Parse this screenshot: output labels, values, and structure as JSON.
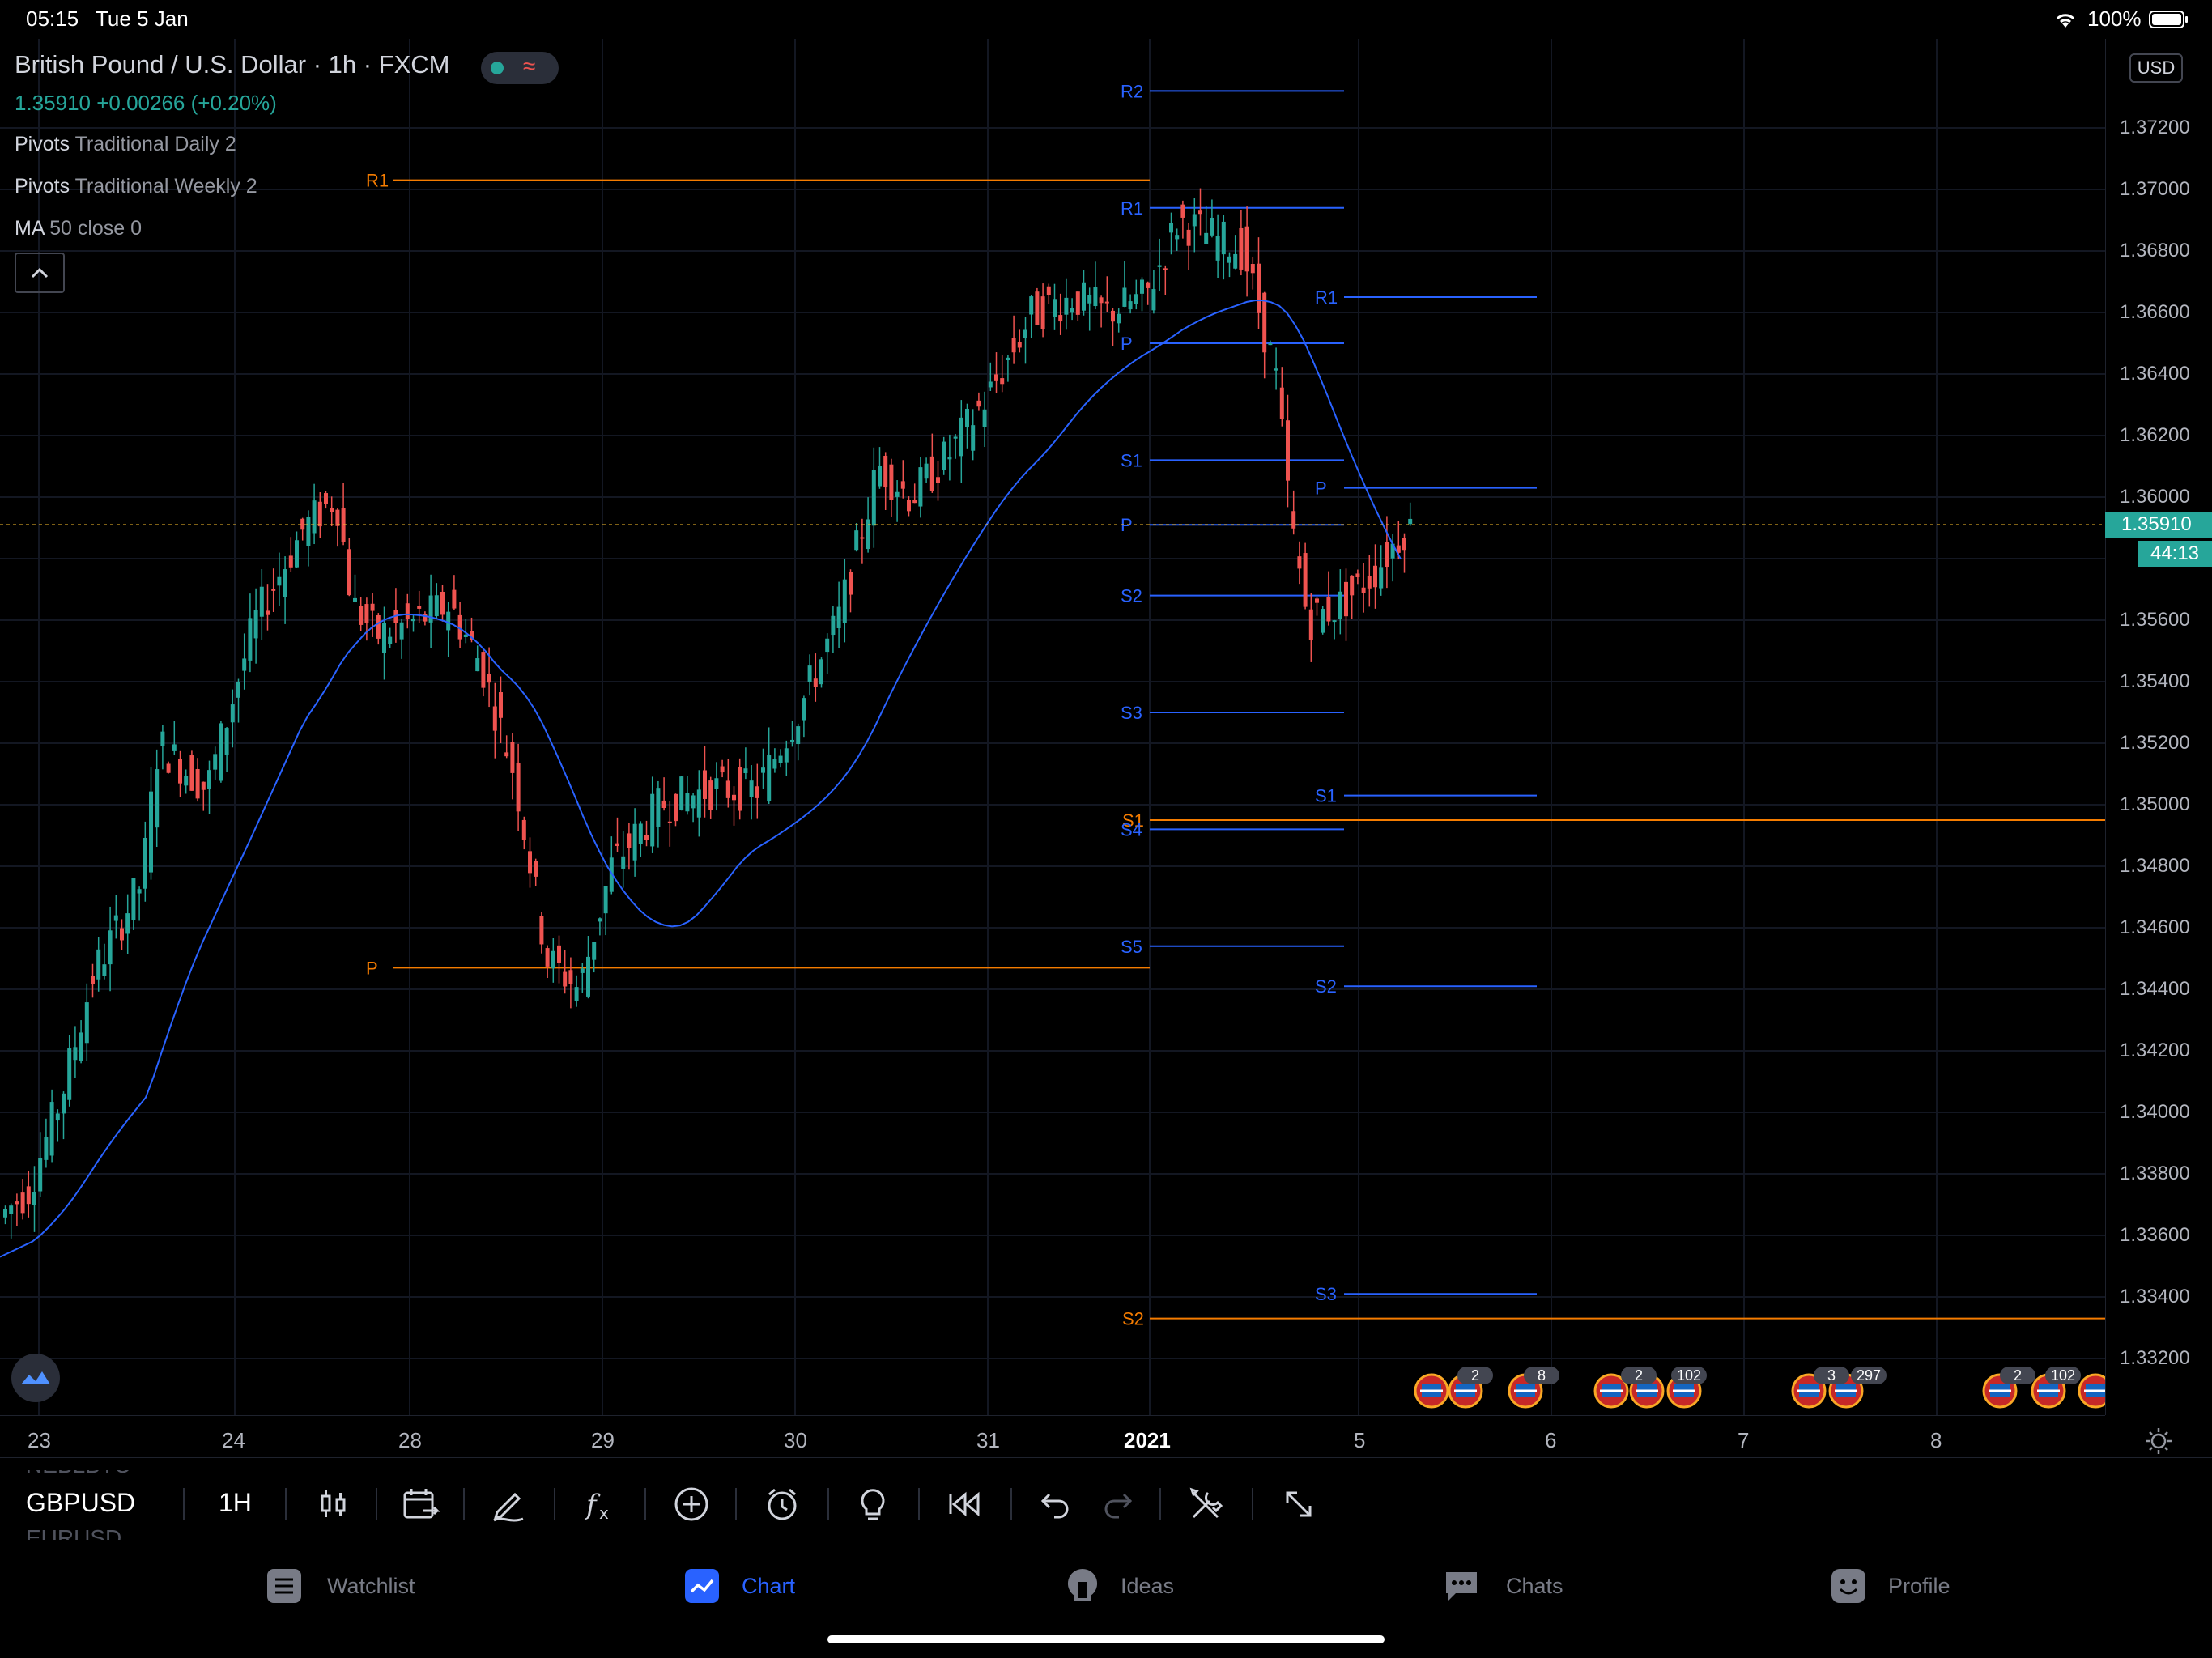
{
  "status_bar": {
    "time": "05:15",
    "date": "Tue 5 Jan",
    "battery": "100%",
    "icons": [
      "wifi-icon",
      "battery-icon"
    ]
  },
  "header": {
    "title": "British Pound / U.S. Dollar · 1h · FXCM",
    "price": "1.35910 +0.00266 (+0.20%)",
    "indicators": [
      {
        "name": "Pivots",
        "params": "Traditional Daily 2"
      },
      {
        "name": "Pivots",
        "params": "Traditional Weekly 2"
      },
      {
        "name": "MA",
        "params": "50 close 0"
      }
    ]
  },
  "price_axis": {
    "currency": "USD",
    "labels": [
      "1.37200",
      "1.37000",
      "1.36800",
      "1.36600",
      "1.36400",
      "1.36200",
      "1.36000",
      "1.35600",
      "1.35400",
      "1.35200",
      "1.35000",
      "1.34800",
      "1.34600",
      "1.34400",
      "1.34200",
      "1.34000",
      "1.33800",
      "1.33600",
      "1.33400",
      "1.33200"
    ],
    "current_price": "1.35910",
    "countdown": "44:13"
  },
  "time_axis": {
    "labels": [
      "23",
      "24",
      "28",
      "29",
      "30",
      "31",
      "2021",
      "5",
      "6",
      "7",
      "8"
    ],
    "bold": "2021"
  },
  "pivot_labels": {
    "weekly": [
      {
        "label": "R1",
        "price": 1.3703
      },
      {
        "label": "P",
        "price": 1.3447
      },
      {
        "label": "S1",
        "price": 1.3495
      },
      {
        "label": "S2",
        "price": 1.3333
      }
    ],
    "daily_1": [
      {
        "label": "R2",
        "price": 1.3732
      },
      {
        "label": "R1",
        "price": 1.3694
      },
      {
        "label": "P",
        "price": 1.365
      },
      {
        "label": "S1",
        "price": 1.3612
      },
      {
        "label": "P",
        "price": 1.3591
      },
      {
        "label": "S2",
        "price": 1.3568
      },
      {
        "label": "S3",
        "price": 1.353
      },
      {
        "label": "S4",
        "price": 1.3492
      },
      {
        "label": "S5",
        "price": 1.3454
      }
    ],
    "daily_2": [
      {
        "label": "R1",
        "price": 1.3665
      },
      {
        "label": "P",
        "price": 1.3603
      },
      {
        "label": "S1",
        "price": 1.3503
      },
      {
        "label": "S2",
        "price": 1.3441
      },
      {
        "label": "S3",
        "price": 1.3341
      }
    ]
  },
  "event_badges": [
    "2",
    "8",
    "2",
    "102",
    "3",
    "297",
    "2",
    "102"
  ],
  "toolbar": {
    "symbol": "GBPUSD",
    "symbol_above": "NEBLBTC",
    "symbol_below": "EURUSD",
    "timeframe": "1H",
    "icons": [
      "candles-icon",
      "compare-icon",
      "pen-icon",
      "indicators-icon",
      "add-icon",
      "alert-icon",
      "idea-icon",
      "replay-icon",
      "undo-icon",
      "redo-icon",
      "tools-icon",
      "fullscreen-icon"
    ]
  },
  "tabs": [
    {
      "label": "Watchlist",
      "icon": "watchlist-icon",
      "active": false
    },
    {
      "label": "Chart",
      "icon": "chart-icon",
      "active": true
    },
    {
      "label": "Ideas",
      "icon": "ideas-icon",
      "active": false
    },
    {
      "label": "Chats",
      "icon": "chats-icon",
      "active": false
    },
    {
      "label": "Profile",
      "icon": "profile-icon",
      "active": false
    }
  ],
  "colors": {
    "up": "#26a69a",
    "down": "#ef5350",
    "ma": "#2962ff",
    "pivot_weekly": "#f57c00",
    "pivot_daily": "#2962ff",
    "accent": "#2962ff"
  }
}
